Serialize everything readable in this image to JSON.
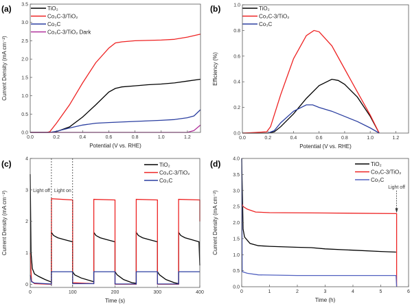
{
  "chart_data": [
    {
      "panel": "(a)",
      "type": "line",
      "xlabel": "Potential (V vs. RHE)",
      "ylabel": "Current Density (mA cm⁻²)",
      "xlim": [
        0,
        1.3
      ],
      "ylim": [
        0,
        3.5
      ],
      "xticks": [
        0,
        0.2,
        0.4,
        0.6,
        0.8,
        1.0,
        1.2
      ],
      "yticks": [
        0,
        0.5,
        1.0,
        1.5,
        2.0,
        2.5,
        3.0,
        3.5
      ],
      "tickdec": 1,
      "ytickdec": 1,
      "legend": "top-left",
      "series": [
        {
          "name": "TiO₂",
          "color": "#000000",
          "points": [
            [
              0,
              0
            ],
            [
              0.15,
              0
            ],
            [
              0.2,
              0.02
            ],
            [
              0.3,
              0.15
            ],
            [
              0.4,
              0.42
            ],
            [
              0.5,
              0.75
            ],
            [
              0.6,
              1.1
            ],
            [
              0.65,
              1.2
            ],
            [
              0.7,
              1.24
            ],
            [
              0.8,
              1.27
            ],
            [
              0.9,
              1.3
            ],
            [
              1.0,
              1.32
            ],
            [
              1.1,
              1.35
            ],
            [
              1.2,
              1.4
            ],
            [
              1.3,
              1.45
            ]
          ]
        },
        {
          "name": "Co₃C-3/TiO₂",
          "color": "#ee2222",
          "points": [
            [
              0,
              0
            ],
            [
              0.13,
              0
            ],
            [
              0.15,
              0.02
            ],
            [
              0.2,
              0.25
            ],
            [
              0.3,
              0.75
            ],
            [
              0.4,
              1.35
            ],
            [
              0.5,
              1.9
            ],
            [
              0.6,
              2.3
            ],
            [
              0.65,
              2.44
            ],
            [
              0.7,
              2.47
            ],
            [
              0.8,
              2.5
            ],
            [
              0.9,
              2.51
            ],
            [
              1.0,
              2.52
            ],
            [
              1.1,
              2.54
            ],
            [
              1.2,
              2.6
            ],
            [
              1.3,
              2.68
            ]
          ]
        },
        {
          "name": "Co₃C",
          "color": "#2a3ea0",
          "points": [
            [
              0,
              0
            ],
            [
              0.15,
              0
            ],
            [
              0.2,
              0.03
            ],
            [
              0.3,
              0.12
            ],
            [
              0.4,
              0.2
            ],
            [
              0.5,
              0.25
            ],
            [
              0.6,
              0.27
            ],
            [
              0.8,
              0.3
            ],
            [
              1.0,
              0.33
            ],
            [
              1.1,
              0.35
            ],
            [
              1.2,
              0.4
            ],
            [
              1.25,
              0.45
            ],
            [
              1.3,
              0.62
            ]
          ]
        },
        {
          "name": "Co₃C-3/TiO₂ Dark",
          "color": "#b0309a",
          "points": [
            [
              0,
              0
            ],
            [
              1.2,
              0
            ],
            [
              1.25,
              0.05
            ],
            [
              1.3,
              0.2
            ]
          ]
        }
      ]
    },
    {
      "panel": "(b)",
      "type": "line",
      "xlabel": "Potential (V vs. RHE)",
      "ylabel": "Efficiency (%)",
      "xlim": [
        0,
        1.3
      ],
      "ylim": [
        0,
        1.0
      ],
      "xticks": [
        0,
        0.2,
        0.4,
        0.6,
        0.8,
        1.0,
        1.2
      ],
      "yticks": [
        0,
        0.2,
        0.4,
        0.6,
        0.8,
        1.0
      ],
      "tickdec": 1,
      "ytickdec": 1,
      "legend": "top-left",
      "series": [
        {
          "name": "TiO₂",
          "color": "#000000",
          "points": [
            [
              0,
              0
            ],
            [
              0.2,
              0
            ],
            [
              0.25,
              0.01
            ],
            [
              0.3,
              0.05
            ],
            [
              0.4,
              0.15
            ],
            [
              0.5,
              0.27
            ],
            [
              0.6,
              0.37
            ],
            [
              0.7,
              0.42
            ],
            [
              0.75,
              0.41
            ],
            [
              0.8,
              0.38
            ],
            [
              0.9,
              0.28
            ],
            [
              1.0,
              0.13
            ],
            [
              1.07,
              0
            ]
          ]
        },
        {
          "name": "Co₃C-3/TiO₂",
          "color": "#ee2222",
          "points": [
            [
              0,
              0
            ],
            [
              0.1,
              0.005
            ],
            [
              0.19,
              0.01
            ],
            [
              0.22,
              0.05
            ],
            [
              0.3,
              0.3
            ],
            [
              0.4,
              0.58
            ],
            [
              0.5,
              0.76
            ],
            [
              0.56,
              0.8
            ],
            [
              0.6,
              0.79
            ],
            [
              0.7,
              0.68
            ],
            [
              0.8,
              0.5
            ],
            [
              0.9,
              0.32
            ],
            [
              1.0,
              0.14
            ],
            [
              1.07,
              0
            ]
          ]
        },
        {
          "name": "Co₃C",
          "color": "#2a3ea0",
          "points": [
            [
              0.2,
              0
            ],
            [
              0.25,
              0.02
            ],
            [
              0.3,
              0.08
            ],
            [
              0.4,
              0.17
            ],
            [
              0.5,
              0.22
            ],
            [
              0.55,
              0.22
            ],
            [
              0.6,
              0.2
            ],
            [
              0.7,
              0.17
            ],
            [
              0.8,
              0.13
            ],
            [
              0.9,
              0.09
            ],
            [
              1.0,
              0.04
            ],
            [
              1.07,
              0
            ]
          ]
        }
      ]
    },
    {
      "panel": "(c)",
      "type": "line",
      "xlabel": "Time (s)",
      "ylabel": "Current Density (mA cm⁻²)",
      "xlim": [
        0,
        400
      ],
      "ylim": [
        -0.1,
        4
      ],
      "xticks": [
        0,
        100,
        200,
        300,
        400
      ],
      "yticks": [
        0,
        1,
        2,
        3,
        4
      ],
      "tickdec": 0,
      "ytickdec": 0,
      "legend": "top-right",
      "annotations": [
        {
          "text": "Light off",
          "x": 50
        },
        {
          "text": "Light on",
          "x": 100
        }
      ],
      "series": [
        {
          "name": "TiO₂",
          "color": "#000000",
          "points": [
            [
              0,
              3.5
            ],
            [
              2,
              1.0
            ],
            [
              5,
              0.5
            ],
            [
              10,
              0.33
            ],
            [
              20,
              0.25
            ],
            [
              35,
              0.15
            ],
            [
              50,
              0.07
            ],
            [
              50,
              1.65
            ],
            [
              55,
              1.55
            ],
            [
              65,
              1.48
            ],
            [
              80,
              1.42
            ],
            [
              100,
              1.35
            ],
            [
              100,
              0.4
            ],
            [
              105,
              0.3
            ],
            [
              120,
              0.2
            ],
            [
              140,
              0.12
            ],
            [
              150,
              0.08
            ],
            [
              150,
              1.65
            ],
            [
              155,
              1.55
            ],
            [
              165,
              1.48
            ],
            [
              180,
              1.42
            ],
            [
              200,
              1.35
            ],
            [
              200,
              0.4
            ],
            [
              205,
              0.3
            ],
            [
              220,
              0.15
            ],
            [
              240,
              0.05
            ],
            [
              250,
              0.03
            ],
            [
              250,
              1.65
            ],
            [
              255,
              1.55
            ],
            [
              265,
              1.48
            ],
            [
              280,
              1.42
            ],
            [
              300,
              1.35
            ],
            [
              300,
              0.4
            ],
            [
              305,
              0.3
            ],
            [
              320,
              0.15
            ],
            [
              340,
              0.05
            ],
            [
              350,
              0.02
            ],
            [
              350,
              1.65
            ],
            [
              355,
              1.55
            ],
            [
              365,
              1.48
            ],
            [
              380,
              1.42
            ],
            [
              398,
              1.35
            ],
            [
              400,
              0.6
            ]
          ]
        },
        {
          "name": "Co₃C-3/TiO₂",
          "color": "#ee2222",
          "points": [
            [
              0,
              1.0
            ],
            [
              3,
              0.1
            ],
            [
              10,
              0.02
            ],
            [
              50,
              0
            ],
            [
              50,
              2.72
            ],
            [
              100,
              2.68
            ],
            [
              100,
              0.05
            ],
            [
              150,
              0.02
            ],
            [
              150,
              2.7
            ],
            [
              200,
              2.68
            ],
            [
              200,
              0
            ],
            [
              250,
              0
            ],
            [
              250,
              2.7
            ],
            [
              300,
              2.68
            ],
            [
              300,
              0
            ],
            [
              350,
              0
            ],
            [
              350,
              2.7
            ],
            [
              400,
              2.68
            ],
            [
              400,
              2.0
            ]
          ]
        },
        {
          "name": "Co₃C",
          "color": "#2a3ea0",
          "points": [
            [
              0,
              0.3
            ],
            [
              3,
              0.08
            ],
            [
              10,
              0.04
            ],
            [
              50,
              0.01
            ],
            [
              50,
              0.4
            ],
            [
              100,
              0.4
            ],
            [
              100,
              0.02
            ],
            [
              150,
              0.02
            ],
            [
              150,
              0.4
            ],
            [
              200,
              0.4
            ],
            [
              200,
              0.01
            ],
            [
              250,
              0.01
            ],
            [
              250,
              0.4
            ],
            [
              300,
              0.4
            ],
            [
              300,
              0.01
            ],
            [
              350,
              0.01
            ],
            [
              350,
              0.4
            ],
            [
              400,
              0.4
            ]
          ]
        }
      ]
    },
    {
      "panel": "(d)",
      "type": "line",
      "xlabel": "Time (h)",
      "ylabel": "Current Density (mA cm⁻²)",
      "xlim": [
        0,
        6
      ],
      "ylim": [
        0,
        4.0
      ],
      "xticks": [
        0,
        1,
        2,
        3,
        4,
        5,
        6
      ],
      "yticks": [
        0,
        0.5,
        1.0,
        1.5,
        2.0,
        2.5,
        3.0,
        3.5,
        4.0
      ],
      "tickdec": 0,
      "ytickdec": 1,
      "legend": "top-right",
      "annotations": [
        {
          "text": "Light off",
          "x": 5.57
        }
      ],
      "series": [
        {
          "name": "TiO₂",
          "color": "#000000",
          "points": [
            [
              0,
              4
            ],
            [
              0.05,
              1.8
            ],
            [
              0.1,
              1.55
            ],
            [
              0.3,
              1.35
            ],
            [
              0.6,
              1.28
            ],
            [
              1,
              1.26
            ],
            [
              2,
              1.23
            ],
            [
              2.5,
              1.22
            ],
            [
              3,
              1.18
            ],
            [
              4,
              1.14
            ],
            [
              5,
              1.1
            ],
            [
              5.55,
              1.08
            ]
          ]
        },
        {
          "name": "Co₃C-3/TiO₂",
          "color": "#ee2222",
          "points": [
            [
              0,
              2.6
            ],
            [
              0.05,
              2.5
            ],
            [
              0.2,
              2.42
            ],
            [
              0.5,
              2.33
            ],
            [
              1,
              2.31
            ],
            [
              3,
              2.3
            ],
            [
              5.57,
              2.28
            ],
            [
              5.57,
              0
            ]
          ]
        },
        {
          "name": "Co₃C",
          "color": "#5060c0",
          "points": [
            [
              0,
              4
            ],
            [
              0.02,
              0.47
            ],
            [
              0.2,
              0.42
            ],
            [
              0.6,
              0.37
            ],
            [
              2,
              0.35
            ],
            [
              5.55,
              0.35
            ],
            [
              5.57,
              0
            ]
          ]
        }
      ]
    }
  ]
}
